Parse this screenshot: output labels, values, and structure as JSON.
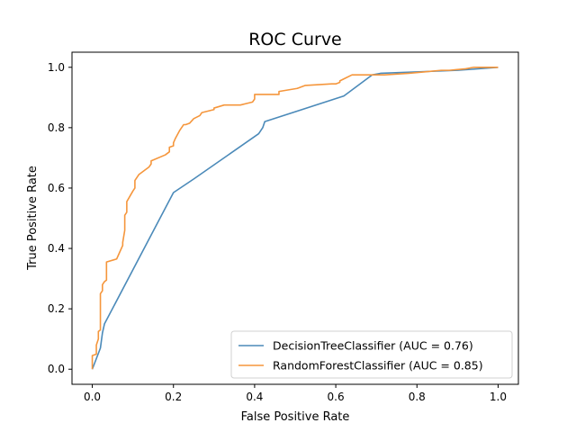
{
  "chart_data": {
    "type": "line",
    "title": "ROC Curve",
    "xlabel": "False Positive Rate",
    "ylabel": "True Positive Rate",
    "xlim": [
      -0.05,
      1.05
    ],
    "ylim": [
      -0.05,
      1.05
    ],
    "xticks": [
      0.0,
      0.2,
      0.4,
      0.6,
      0.8,
      1.0
    ],
    "yticks": [
      0.0,
      0.2,
      0.4,
      0.6,
      0.8,
      1.0
    ],
    "xtick_labels": [
      "0.0",
      "0.2",
      "0.4",
      "0.6",
      "0.8",
      "1.0"
    ],
    "ytick_labels": [
      "0.0",
      "0.2",
      "0.4",
      "0.6",
      "0.8",
      "1.0"
    ],
    "grid": false,
    "legend_position": "lower-right",
    "series": [
      {
        "name": "DecisionTreeClassifier (AUC = 0.76)",
        "color": "#4b8ab9",
        "x": [
          0.0,
          0.02,
          0.025,
          0.03,
          0.2,
          0.25,
          0.41,
          0.42,
          0.425,
          0.62,
          0.69,
          0.71,
          0.9,
          1.0
        ],
        "y": [
          0.0,
          0.07,
          0.12,
          0.15,
          0.585,
          0.63,
          0.78,
          0.8,
          0.82,
          0.905,
          0.975,
          0.98,
          0.99,
          1.0
        ]
      },
      {
        "name": "RandomForestClassifier (AUC = 0.85)",
        "color": "#f5963c",
        "x": [
          0.0,
          0.0,
          0.01,
          0.01,
          0.015,
          0.015,
          0.02,
          0.02,
          0.025,
          0.025,
          0.03,
          0.035,
          0.035,
          0.06,
          0.065,
          0.075,
          0.075,
          0.08,
          0.08,
          0.085,
          0.085,
          0.1,
          0.105,
          0.105,
          0.115,
          0.14,
          0.145,
          0.145,
          0.18,
          0.19,
          0.19,
          0.2,
          0.2,
          0.205,
          0.215,
          0.225,
          0.23,
          0.24,
          0.25,
          0.265,
          0.27,
          0.3,
          0.3,
          0.325,
          0.33,
          0.35,
          0.365,
          0.38,
          0.395,
          0.4,
          0.4,
          0.42,
          0.445,
          0.46,
          0.46,
          0.505,
          0.525,
          0.59,
          0.6,
          0.61,
          0.61,
          0.64,
          0.68,
          0.69,
          0.7,
          0.72,
          0.78,
          0.82,
          0.86,
          0.88,
          0.92,
          0.94,
          0.96,
          1.0
        ],
        "y": [
          0.0,
          0.045,
          0.05,
          0.08,
          0.1,
          0.125,
          0.13,
          0.25,
          0.26,
          0.28,
          0.29,
          0.295,
          0.355,
          0.365,
          0.38,
          0.41,
          0.42,
          0.46,
          0.51,
          0.52,
          0.555,
          0.59,
          0.6,
          0.625,
          0.645,
          0.67,
          0.68,
          0.69,
          0.71,
          0.72,
          0.735,
          0.74,
          0.75,
          0.765,
          0.79,
          0.81,
          0.81,
          0.815,
          0.83,
          0.84,
          0.85,
          0.86,
          0.865,
          0.875,
          0.875,
          0.875,
          0.875,
          0.88,
          0.885,
          0.895,
          0.91,
          0.91,
          0.91,
          0.91,
          0.92,
          0.93,
          0.94,
          0.945,
          0.945,
          0.95,
          0.955,
          0.975,
          0.975,
          0.975,
          0.975,
          0.975,
          0.98,
          0.985,
          0.99,
          0.99,
          0.995,
          1.0,
          1.0,
          1.0
        ]
      }
    ]
  }
}
